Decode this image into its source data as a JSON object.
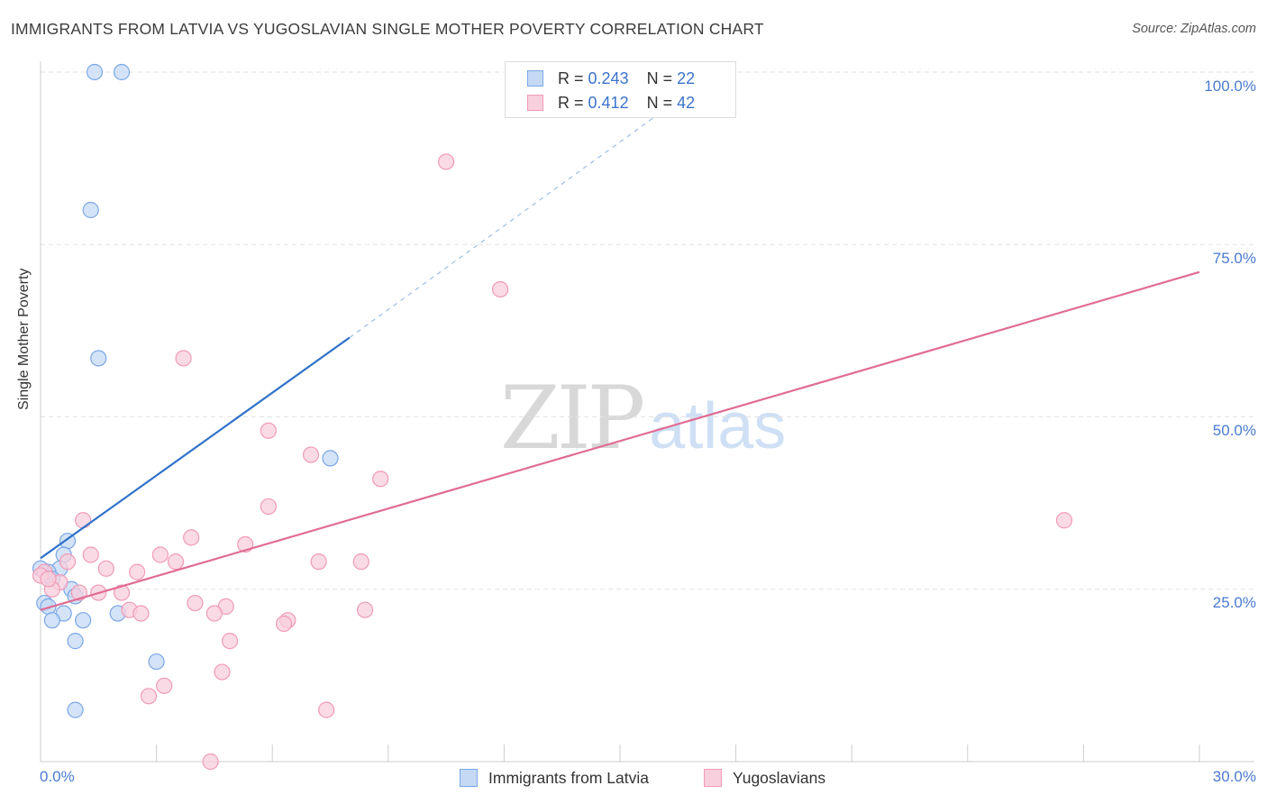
{
  "chart_data": {
    "type": "scatter",
    "title": "IMMIGRANTS FROM LATVIA VS YUGOSLAVIAN SINGLE MOTHER POVERTY CORRELATION CHART",
    "source": "Source: ZipAtlas.com",
    "ylabel": "Single Mother Poverty",
    "xlabel": "",
    "xlim": [
      0,
      30
    ],
    "ylim": [
      0,
      100
    ],
    "x_tick_labels": [
      "0.0%",
      "30.0%"
    ],
    "y_tick_labels": [
      "100.0%",
      "75.0%",
      "50.0%",
      "25.0%"
    ],
    "grid": true,
    "legend_position": "top-center",
    "watermark": {
      "zip": "ZIP",
      "atlas": "atlas"
    },
    "series": [
      {
        "name": "Immigrants from Latvia",
        "color": "#7aa7e8",
        "fill": "#c5d9f4",
        "line_color": "#2f72c9",
        "R": "0.243",
        "N": "22",
        "trend": {
          "x0": 0,
          "y0": 29.5,
          "x1": 8.0,
          "y1": 61.5,
          "dashed_to_x": 17.5,
          "dashed_to_y": 100
        },
        "points": [
          [
            1.4,
            100
          ],
          [
            2.1,
            100
          ],
          [
            1.3,
            80
          ],
          [
            1.5,
            58.5
          ],
          [
            7.5,
            44
          ],
          [
            0.7,
            32
          ],
          [
            0.6,
            30
          ],
          [
            0.5,
            28
          ],
          [
            0.2,
            27.5
          ],
          [
            0.8,
            25
          ],
          [
            0.9,
            24
          ],
          [
            0.1,
            23
          ],
          [
            0.2,
            22.5
          ],
          [
            0.6,
            21.5
          ],
          [
            0.3,
            20.5
          ],
          [
            1.1,
            20.5
          ],
          [
            2.0,
            21.5
          ],
          [
            0.9,
            17.5
          ],
          [
            3.0,
            14.5
          ],
          [
            0.9,
            7.5
          ],
          [
            0.0,
            28.0
          ],
          [
            0.3,
            26.5
          ]
        ]
      },
      {
        "name": "Yugoslavians",
        "color": "#f09ab6",
        "fill": "#f8cfdc",
        "line_color": "#e06c95",
        "R": "0.412",
        "N": "42",
        "trend": {
          "x0": 0,
          "y0": 22,
          "x1": 30,
          "y1": 71
        },
        "points": [
          [
            13.5,
            96
          ],
          [
            10.5,
            87
          ],
          [
            11.9,
            68.5
          ],
          [
            3.7,
            58.5
          ],
          [
            5.9,
            48
          ],
          [
            7.0,
            44.5
          ],
          [
            8.8,
            41
          ],
          [
            5.9,
            37
          ],
          [
            1.1,
            35
          ],
          [
            3.9,
            32.5
          ],
          [
            26.5,
            35
          ],
          [
            5.3,
            31.5
          ],
          [
            1.3,
            30
          ],
          [
            3.1,
            30
          ],
          [
            3.5,
            29
          ],
          [
            7.2,
            29
          ],
          [
            8.3,
            29
          ],
          [
            0.7,
            29
          ],
          [
            1.7,
            28
          ],
          [
            2.5,
            27.5
          ],
          [
            0.1,
            27.5
          ],
          [
            0.5,
            26
          ],
          [
            0.3,
            25
          ],
          [
            1.5,
            24.5
          ],
          [
            1.0,
            24.5
          ],
          [
            2.1,
            24.5
          ],
          [
            4.0,
            23
          ],
          [
            4.8,
            22.5
          ],
          [
            2.3,
            22
          ],
          [
            8.4,
            22
          ],
          [
            2.6,
            21.5
          ],
          [
            4.5,
            21.5
          ],
          [
            6.4,
            20.5
          ],
          [
            6.3,
            20
          ],
          [
            4.9,
            17.5
          ],
          [
            4.7,
            13
          ],
          [
            3.2,
            11
          ],
          [
            2.8,
            9.5
          ],
          [
            7.4,
            7.5
          ],
          [
            4.4,
            0
          ],
          [
            0.0,
            27
          ],
          [
            0.2,
            26.5
          ]
        ]
      }
    ]
  },
  "legend_top": [
    {
      "r_label": "R =",
      "r_value": "0.243",
      "n_label": "N =",
      "n_value": "22"
    },
    {
      "r_label": "R =",
      "r_value": "0.412",
      "n_label": "N =",
      "n_value": "42"
    }
  ]
}
